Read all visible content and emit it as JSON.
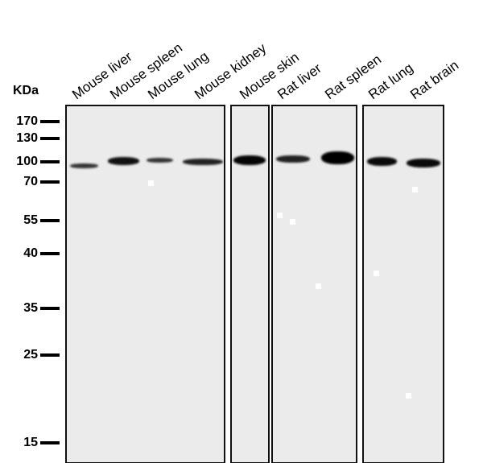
{
  "unit_label": "KDa",
  "markers": [
    "170",
    "130",
    "100",
    "70",
    "55",
    "40",
    "35",
    "25",
    "15"
  ],
  "lanes": [
    "Mouse liver",
    "Mouse spleen",
    "Mouse lung",
    "Mouse kidney",
    "Mouse skin",
    "Rat liver",
    "Rat spleen",
    "Rat lung",
    "Rat brain"
  ]
}
